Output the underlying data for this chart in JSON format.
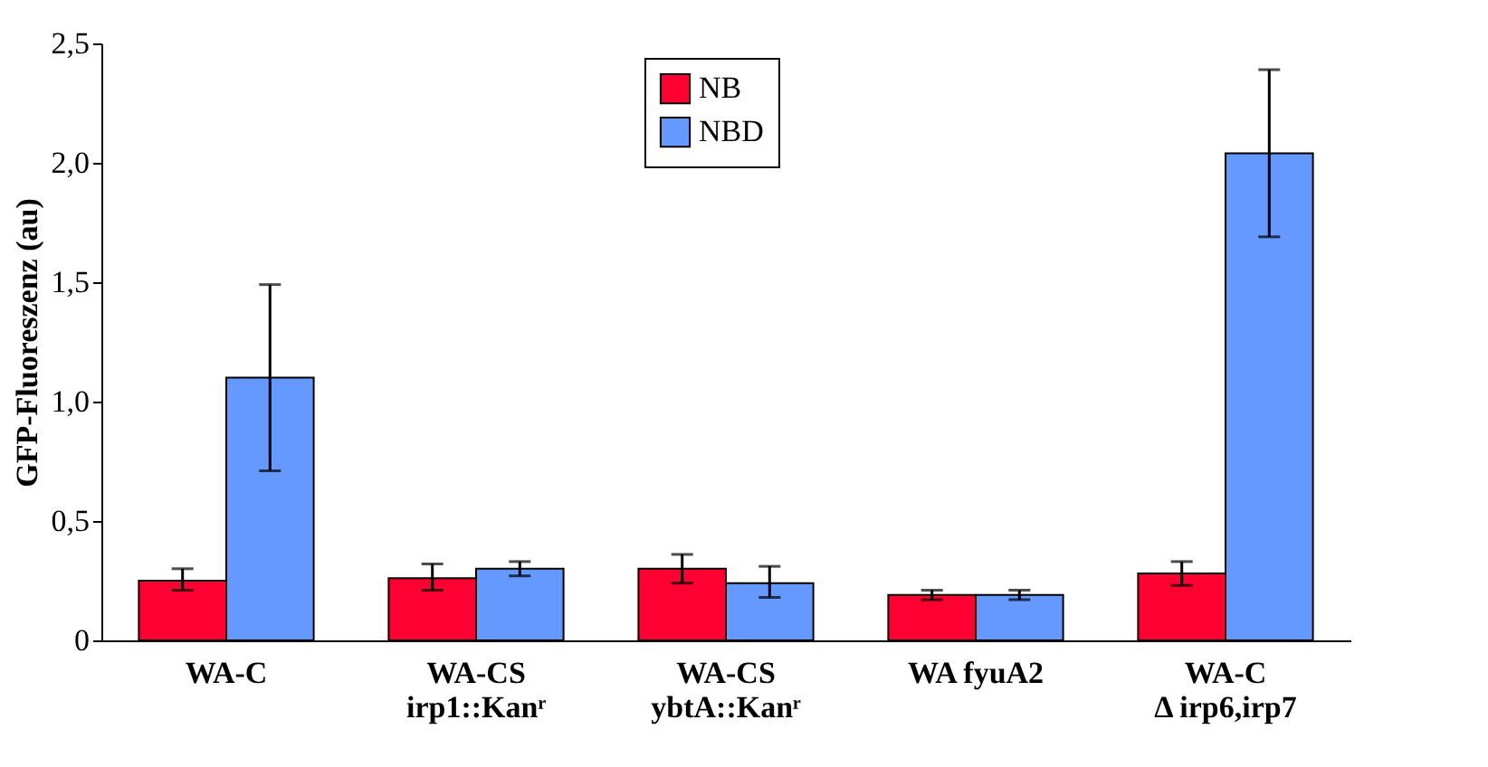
{
  "chart_data": {
    "type": "bar",
    "ylabel": "GFP-Fluoreszenz (au)",
    "categories": [
      "WA-C",
      "WA-CS\nirp1::Kanʳ",
      "WA-CS\nybtA::Kanʳ",
      "WA fyuA2",
      "WA-C\nΔ irp6,irp7"
    ],
    "series": [
      {
        "name": "NB",
        "color": "#ff0033",
        "values": [
          0.25,
          0.26,
          0.3,
          0.19,
          0.28
        ],
        "errors": [
          [
            0.21,
            0.3
          ],
          [
            0.21,
            0.32
          ],
          [
            0.24,
            0.36
          ],
          [
            0.17,
            0.21
          ],
          [
            0.23,
            0.33
          ]
        ]
      },
      {
        "name": "NBD",
        "color": "#6699ff",
        "values": [
          1.1,
          0.3,
          0.24,
          0.19,
          2.04
        ],
        "errors": [
          [
            0.71,
            1.49
          ],
          [
            0.27,
            0.33
          ],
          [
            0.18,
            0.31
          ],
          [
            0.17,
            0.21
          ],
          [
            1.69,
            2.39
          ]
        ]
      }
    ],
    "ylim": [
      0,
      2.5
    ],
    "yticks": [
      0,
      {
        "value": 0.5,
        "label": "0,5"
      },
      {
        "value": 1.0,
        "label": "1,0"
      },
      {
        "value": 1.5,
        "label": "1,5"
      },
      {
        "value": 2.0,
        "label": "2,0"
      },
      {
        "value": 2.5,
        "label": "2,5"
      }
    ],
    "grid": false,
    "legend": "top"
  }
}
